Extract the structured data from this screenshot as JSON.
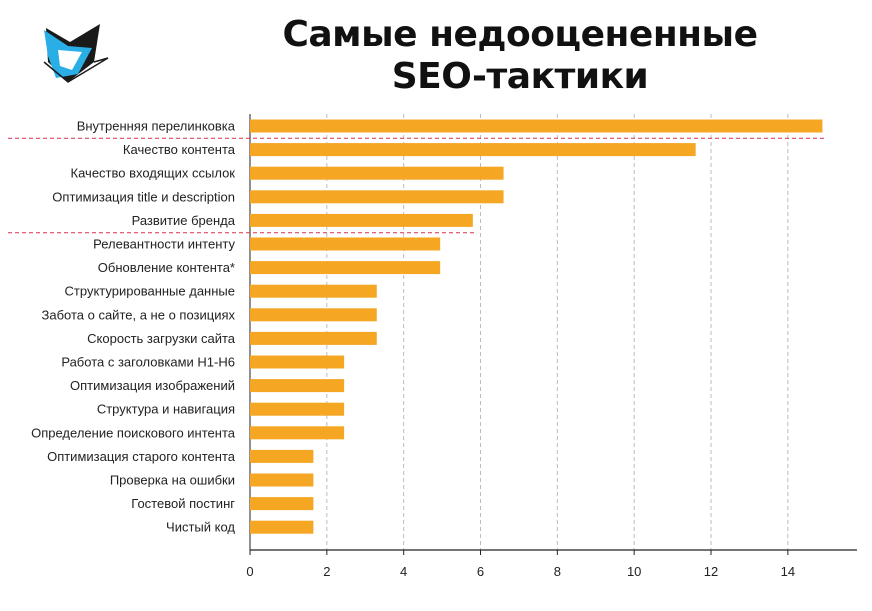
{
  "header": {
    "title_line1": "Самые недооцененные",
    "title_line2": "SEO-тактики"
  },
  "colors": {
    "bar": "#f5a623",
    "grid": "#bbbbbb",
    "axis": "#222222",
    "marker": "#d9304f",
    "logo_blue": "#29aee6",
    "logo_dark": "#1a1a1a"
  },
  "icons": {
    "logo": "logo-icon"
  },
  "chart_data": {
    "type": "bar",
    "orientation": "horizontal",
    "categories": [
      "Внутренняя перелинковка",
      "Качество контента",
      "Качество входящих ссылок",
      "Оптимизация title и description",
      "Развитие бренда",
      "Релевантности интенту",
      "Обновление контента*",
      "Структурированные данные",
      "Забота о сайте, а не о позициях",
      "Скорость загрузки сайта",
      "Работа с заголовками H1-H6",
      "Оптимизация изображений",
      "Структура и навигация",
      "Определение поискового интента",
      "Оптимизация старого контента",
      "Проверка на ошибки",
      "Гостевой постинг",
      "Чистый код"
    ],
    "values": [
      14.9,
      11.6,
      6.6,
      6.6,
      5.8,
      4.95,
      4.95,
      3.3,
      3.3,
      3.3,
      2.45,
      2.45,
      2.45,
      2.45,
      1.65,
      1.65,
      1.65,
      1.65
    ],
    "xlim": [
      0,
      15.8
    ],
    "xticks": [
      "0",
      "2",
      "4",
      "6",
      "8",
      "10",
      "12",
      "14"
    ],
    "grid": "vertical",
    "title": "Самые недооцененные SEO-тактики",
    "xlabel": "",
    "ylabel": "",
    "group_separators_after": [
      0,
      4
    ]
  }
}
